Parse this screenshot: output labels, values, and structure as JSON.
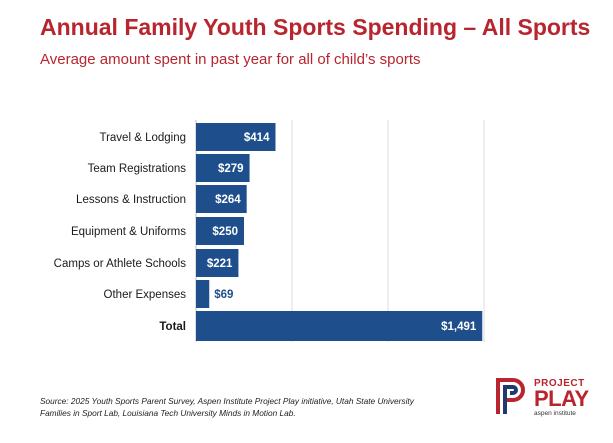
{
  "header": {
    "title": "Annual Family Youth Sports Spending – All Sports",
    "subtitle": "Average amount spent in past year for all of child’s sports"
  },
  "chart_data": {
    "type": "bar",
    "orientation": "horizontal",
    "title": "Annual Family Youth Sports Spending – All Sports",
    "subtitle": "Average amount spent in past year for all of child’s sports",
    "categories": [
      "Travel & Lodging",
      "Team Registrations",
      "Lessons & Instruction",
      "Equipment & Uniforms",
      "Camps or Athlete Schools",
      "Other Expenses",
      "Total"
    ],
    "values": [
      414,
      279,
      264,
      250,
      221,
      69,
      1491
    ],
    "value_labels": [
      "$414",
      "$279",
      "$264",
      "$250",
      "$221",
      "$69",
      "$1,491"
    ],
    "xlim": [
      0,
      1500
    ],
    "xlabel": "",
    "ylabel": "",
    "grid": true,
    "bar_color": "#1e4f8c"
  },
  "footer": {
    "source": "Source: 2025 Youth Sports Parent Survey, Aspen Institute Project Play initiative, Utah State University Families in Sport Lab, Louisiana Tech University Minds in Motion Lab."
  },
  "logo": {
    "line1": "PROJECT",
    "line2": "PLAY",
    "line3": "aspen institute",
    "color": "#b8252e"
  }
}
